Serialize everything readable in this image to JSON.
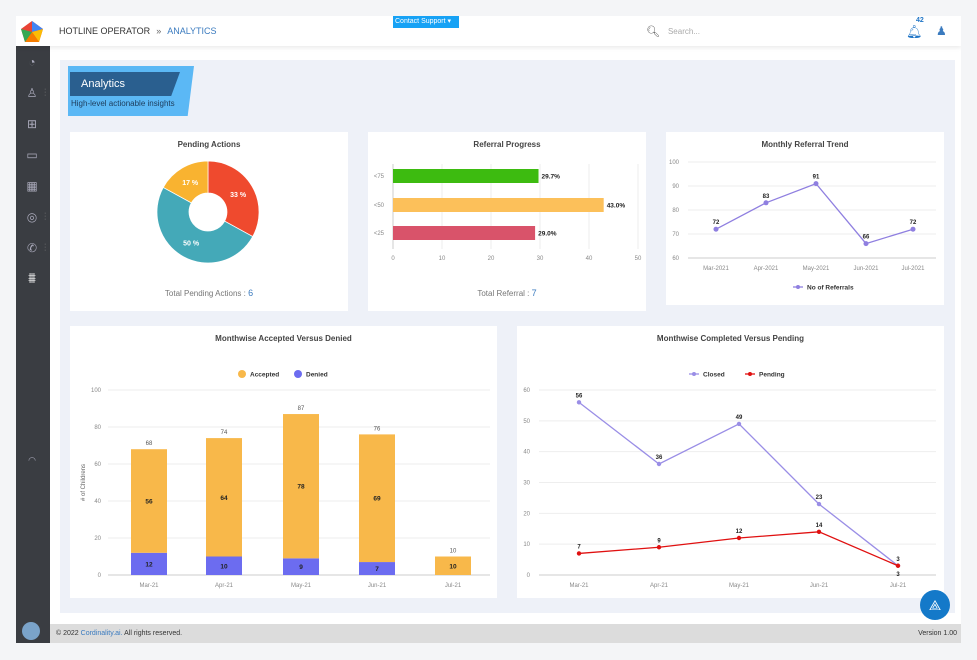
{
  "header": {
    "breadcrumb_root": "HOTLINE OPERATOR",
    "breadcrumb_sep": "»",
    "breadcrumb_current": "ANALYTICS",
    "contact_support": "Contact Support ▾",
    "search_placeholder": "Search...",
    "notification_count": "42"
  },
  "sidebar": {
    "icons": [
      "dashboard-icon",
      "user-search-icon",
      "hierarchy-icon",
      "chat-icon",
      "calendar-icon",
      "brain-icon",
      "phone-icon",
      "analytics-icon"
    ]
  },
  "hero": {
    "title": "Analytics",
    "subtitle": "High-level actionable insights"
  },
  "footer": {
    "copyright_prefix": "© 2022",
    "company": "Cordinality.ai.",
    "copyright_suffix": "All rights reserved.",
    "version": "Version 1.00"
  },
  "colors": {
    "accent": "#3b7bbf",
    "sidebar": "#3a3d42"
  },
  "chart_data": [
    {
      "type": "pie",
      "title": "Pending Actions",
      "slices": [
        {
          "label": "33 %",
          "value": 33,
          "color": "#ef4a2e"
        },
        {
          "label": "50 %",
          "value": 50,
          "color": "#44a9b8"
        },
        {
          "label": "17 %",
          "value": 17,
          "color": "#f9b330"
        }
      ],
      "total_label": "Total Pending Actions :",
      "total": "6"
    },
    {
      "type": "bar",
      "orientation": "horizontal",
      "title": "Referral Progress",
      "categories": [
        "<75",
        "<50",
        "<25"
      ],
      "values": [
        29.7,
        43.0,
        29.0
      ],
      "labels": [
        "29.7%",
        "43.0%",
        "29.0%"
      ],
      "colors": [
        "#3dbb10",
        "#fcc05a",
        "#d9536a"
      ],
      "xlim": [
        0,
        50
      ],
      "xticks": [
        "0",
        "10",
        "20",
        "30",
        "40",
        "50"
      ],
      "total_label": "Total Referral :",
      "total": "7"
    },
    {
      "type": "line",
      "title": "Monthly Referral Trend",
      "categories": [
        "Mar-2021",
        "Apr-2021",
        "May-2021",
        "Jun-2021",
        "Jul-2021"
      ],
      "series": [
        {
          "name": "No of Referrals",
          "values": [
            72,
            83,
            91,
            66,
            72
          ],
          "color": "#8f7fe0"
        }
      ],
      "ylim": [
        60,
        100
      ],
      "yticks": [
        "60",
        "70",
        "80",
        "90",
        "100"
      ],
      "legend": "bottom"
    },
    {
      "type": "bar",
      "stacked": true,
      "title": "Monthwise Accepted Versus Denied",
      "categories": [
        "Mar-21",
        "Apr-21",
        "May-21",
        "Jun-21",
        "Jul-21"
      ],
      "series": [
        {
          "name": "Denied",
          "values": [
            12,
            10,
            9,
            7,
            0
          ],
          "color": "#6c6cf0"
        },
        {
          "name": "Accepted",
          "values": [
            56,
            64,
            78,
            69,
            10
          ],
          "color": "#f8b84a"
        }
      ],
      "totals": [
        68,
        74,
        87,
        76,
        10
      ],
      "ylabel": "# of Childrens",
      "ylim": [
        0,
        100
      ],
      "yticks": [
        "0",
        "20",
        "40",
        "60",
        "80",
        "100"
      ],
      "legend": "top"
    },
    {
      "type": "line",
      "title": "Monthwise Completed Versus Pending",
      "categories": [
        "Mar-21",
        "Apr-21",
        "May-21",
        "Jun-21",
        "Jul-21"
      ],
      "series": [
        {
          "name": "Closed",
          "values": [
            56,
            36,
            49,
            23,
            3
          ],
          "color": "#9a8ee6"
        },
        {
          "name": "Pending",
          "values": [
            7,
            9,
            12,
            14,
            3
          ],
          "color": "#e01010"
        }
      ],
      "ylim": [
        0,
        60
      ],
      "yticks": [
        "0",
        "10",
        "20",
        "30",
        "40",
        "50",
        "60"
      ],
      "legend": "top"
    }
  ]
}
